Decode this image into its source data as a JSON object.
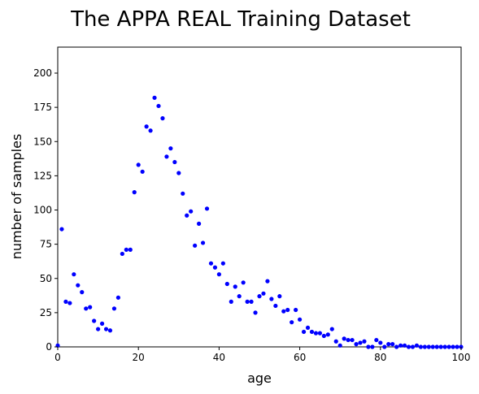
{
  "chart_data": {
    "type": "scatter",
    "title": "The APPA REAL Training Dataset",
    "xlabel": "age",
    "ylabel": "number of samples",
    "xlim": [
      0,
      100
    ],
    "ylim": [
      0,
      219
    ],
    "xticks": [
      "0",
      "20",
      "40",
      "60",
      "80",
      "100"
    ],
    "yticks": [
      "0",
      "25",
      "50",
      "75",
      "100",
      "125",
      "150",
      "175",
      "200"
    ],
    "grid": false,
    "marker_color": "#0000ff",
    "points": [
      [
        0,
        1
      ],
      [
        1,
        86
      ],
      [
        2,
        33
      ],
      [
        3,
        32
      ],
      [
        4,
        53
      ],
      [
        5,
        45
      ],
      [
        6,
        40
      ],
      [
        7,
        28
      ],
      [
        8,
        29
      ],
      [
        9,
        19
      ],
      [
        10,
        13
      ],
      [
        11,
        17
      ],
      [
        12,
        13
      ],
      [
        13,
        12
      ],
      [
        14,
        28
      ],
      [
        15,
        36
      ],
      [
        16,
        68
      ],
      [
        17,
        71
      ],
      [
        18,
        71
      ],
      [
        19,
        113
      ],
      [
        20,
        133
      ],
      [
        21,
        128
      ],
      [
        22,
        161
      ],
      [
        23,
        158
      ],
      [
        24,
        182
      ],
      [
        25,
        176
      ],
      [
        26,
        167
      ],
      [
        27,
        139
      ],
      [
        28,
        145
      ],
      [
        29,
        135
      ],
      [
        30,
        127
      ],
      [
        31,
        112
      ],
      [
        32,
        96
      ],
      [
        33,
        99
      ],
      [
        34,
        74
      ],
      [
        35,
        90
      ],
      [
        36,
        76
      ],
      [
        37,
        101
      ],
      [
        38,
        61
      ],
      [
        39,
        58
      ],
      [
        40,
        53
      ],
      [
        41,
        61
      ],
      [
        42,
        46
      ],
      [
        43,
        33
      ],
      [
        44,
        44
      ],
      [
        45,
        37
      ],
      [
        46,
        47
      ],
      [
        47,
        33
      ],
      [
        48,
        33
      ],
      [
        49,
        25
      ],
      [
        50,
        37
      ],
      [
        51,
        39
      ],
      [
        52,
        48
      ],
      [
        53,
        35
      ],
      [
        54,
        30
      ],
      [
        55,
        37
      ],
      [
        56,
        26
      ],
      [
        57,
        27
      ],
      [
        58,
        18
      ],
      [
        59,
        27
      ],
      [
        60,
        20
      ],
      [
        61,
        11
      ],
      [
        62,
        14
      ],
      [
        63,
        11
      ],
      [
        64,
        10
      ],
      [
        65,
        10
      ],
      [
        66,
        8
      ],
      [
        67,
        9
      ],
      [
        68,
        13
      ],
      [
        69,
        4
      ],
      [
        70,
        1
      ],
      [
        71,
        6
      ],
      [
        72,
        5
      ],
      [
        73,
        5
      ],
      [
        74,
        2
      ],
      [
        75,
        3
      ],
      [
        76,
        4
      ],
      [
        77,
        0
      ],
      [
        78,
        0
      ],
      [
        79,
        5
      ],
      [
        80,
        3
      ],
      [
        81,
        0
      ],
      [
        82,
        2
      ],
      [
        83,
        2
      ],
      [
        84,
        0
      ],
      [
        85,
        1
      ],
      [
        86,
        1
      ],
      [
        87,
        0
      ],
      [
        88,
        0
      ],
      [
        89,
        1
      ],
      [
        90,
        0
      ],
      [
        91,
        0
      ],
      [
        92,
        0
      ],
      [
        93,
        0
      ],
      [
        94,
        0
      ],
      [
        95,
        0
      ],
      [
        96,
        0
      ],
      [
        97,
        0
      ],
      [
        98,
        0
      ],
      [
        99,
        0
      ],
      [
        100,
        0
      ]
    ]
  }
}
